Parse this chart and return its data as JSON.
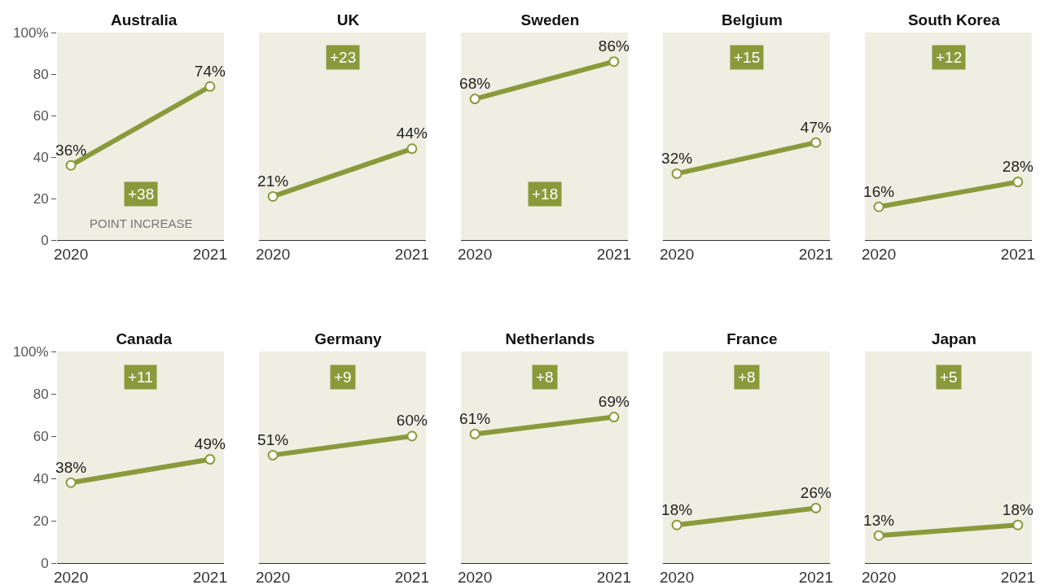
{
  "chart_data": [
    {
      "type": "line",
      "title": "Australia",
      "categories": [
        "2020",
        "2021"
      ],
      "series": [
        {
          "color": "#8a9a3b",
          "values": [
            36,
            74
          ],
          "value_labels": [
            "36%",
            "74%"
          ]
        }
      ],
      "ylim": [
        0,
        100
      ],
      "yticks": [
        0,
        20,
        40,
        60,
        80,
        {
          "value": 100,
          "label": "100%"
        }
      ],
      "marker": "circle",
      "annotations": [
        "+38",
        "POINT INCREASE"
      ]
    },
    {
      "type": "line",
      "title": "UK",
      "categories": [
        "2020",
        "2021"
      ],
      "series": [
        {
          "color": "#8a9a3b",
          "values": [
            21,
            44
          ],
          "value_labels": [
            "21%",
            "44%"
          ]
        }
      ],
      "ylim": [
        0,
        100
      ],
      "tick_labels": "x",
      "marker": "circle",
      "annotations": [
        "+23"
      ]
    },
    {
      "type": "line",
      "title": "Sweden",
      "categories": [
        "2020",
        "2021"
      ],
      "series": [
        {
          "color": "#8a9a3b",
          "values": [
            68,
            86
          ],
          "value_labels": [
            "68%",
            "86%"
          ]
        }
      ],
      "ylim": [
        0,
        100
      ],
      "tick_labels": "x",
      "marker": "circle",
      "annotations": [
        "+18"
      ]
    },
    {
      "type": "line",
      "title": "Belgium",
      "categories": [
        "2020",
        "2021"
      ],
      "series": [
        {
          "color": "#8a9a3b",
          "values": [
            32,
            47
          ],
          "value_labels": [
            "32%",
            "47%"
          ]
        }
      ],
      "ylim": [
        0,
        100
      ],
      "tick_labels": "x",
      "marker": "circle",
      "annotations": [
        "+15"
      ]
    },
    {
      "type": "line",
      "title": "South Korea",
      "categories": [
        "2020",
        "2021"
      ],
      "series": [
        {
          "color": "#8a9a3b",
          "values": [
            16,
            28
          ],
          "value_labels": [
            "16%",
            "28%"
          ]
        }
      ],
      "ylim": [
        0,
        100
      ],
      "tick_labels": "x",
      "marker": "circle",
      "annotations": [
        "+12"
      ]
    },
    {
      "type": "line",
      "title": "Canada",
      "categories": [
        "2020",
        "2021"
      ],
      "series": [
        {
          "color": "#8a9a3b",
          "values": [
            38,
            49
          ],
          "value_labels": [
            "38%",
            "49%"
          ]
        }
      ],
      "ylim": [
        0,
        100
      ],
      "yticks": [
        0,
        20,
        40,
        60,
        80,
        {
          "value": 100,
          "label": "100%"
        }
      ],
      "marker": "circle",
      "annotations": [
        "+11"
      ]
    },
    {
      "type": "line",
      "title": "Germany",
      "categories": [
        "2020",
        "2021"
      ],
      "series": [
        {
          "color": "#8a9a3b",
          "values": [
            51,
            60
          ],
          "value_labels": [
            "51%",
            "60%"
          ]
        }
      ],
      "ylim": [
        0,
        100
      ],
      "tick_labels": "x",
      "marker": "circle",
      "annotations": [
        "+9"
      ]
    },
    {
      "type": "line",
      "title": "Netherlands",
      "categories": [
        "2020",
        "2021"
      ],
      "series": [
        {
          "color": "#8a9a3b",
          "values": [
            61,
            69
          ],
          "value_labels": [
            "61%",
            "69%"
          ]
        }
      ],
      "ylim": [
        0,
        100
      ],
      "tick_labels": "x",
      "marker": "circle",
      "annotations": [
        "+8"
      ]
    },
    {
      "type": "line",
      "title": "France",
      "categories": [
        "2020",
        "2021"
      ],
      "series": [
        {
          "color": "#8a9a3b",
          "values": [
            18,
            26
          ],
          "value_labels": [
            "18%",
            "26%"
          ]
        }
      ],
      "ylim": [
        0,
        100
      ],
      "tick_labels": "x",
      "marker": "circle",
      "annotations": [
        "+8"
      ]
    },
    {
      "type": "line",
      "title": "Japan",
      "categories": [
        "2020",
        "2021"
      ],
      "series": [
        {
          "color": "#8a9a3b",
          "values": [
            13,
            18
          ],
          "value_labels": [
            "13%",
            "18%"
          ]
        }
      ],
      "ylim": [
        0,
        100
      ],
      "tick_labels": "x",
      "marker": "circle",
      "annotations": [
        "+5"
      ]
    }
  ]
}
